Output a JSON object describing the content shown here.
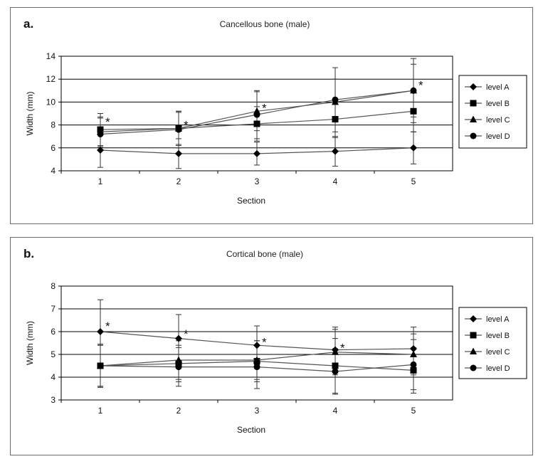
{
  "chart_data": [
    {
      "type": "line",
      "panel_letter": "a.",
      "title": "Cancellous bone (male)",
      "xlabel": "Section",
      "ylabel": "Width (mm)",
      "ylim": [
        4,
        14
      ],
      "yticks": [
        "4",
        "6",
        "8",
        "10",
        "12",
        "14"
      ],
      "categories": [
        "1",
        "2",
        "3",
        "4",
        "5"
      ],
      "grid": "horizontal",
      "legend_position": "right",
      "series": [
        {
          "name": "level A",
          "marker": "diamond",
          "values": [
            5.8,
            5.5,
            5.5,
            5.7,
            6.0
          ],
          "err": [
            1.5,
            1.3,
            1.0,
            1.3,
            1.4
          ]
        },
        {
          "name": "level B",
          "marker": "square",
          "values": [
            7.6,
            7.7,
            8.1,
            8.5,
            9.2
          ],
          "err": [
            1.4,
            1.5,
            1.5,
            1.6,
            1.8
          ]
        },
        {
          "name": "level C",
          "marker": "triangle",
          "values": [
            7.4,
            7.7,
            9.2,
            10.0,
            11.0
          ],
          "err": [
            1.3,
            1.4,
            1.7,
            2.0,
            2.3
          ]
        },
        {
          "name": "level D",
          "marker": "circle",
          "values": [
            7.2,
            7.6,
            8.9,
            10.2,
            11.0
          ],
          "err": [
            1.4,
            1.6,
            2.1,
            2.8,
            2.8
          ]
        }
      ],
      "annotations": [
        {
          "text": "*",
          "category": "1",
          "y": 8.3
        },
        {
          "text": "*",
          "category": "2",
          "y": 8.0
        },
        {
          "text": "*",
          "category": "3",
          "y": 9.5
        },
        {
          "text": "*",
          "category": "5",
          "y": 11.5
        }
      ]
    },
    {
      "type": "line",
      "panel_letter": "b.",
      "title": "Cortical bone (male)",
      "xlabel": "Section",
      "ylabel": "Width (mm)",
      "ylim": [
        3,
        8
      ],
      "yticks": [
        "3",
        "4",
        "5",
        "6",
        "7",
        "8"
      ],
      "categories": [
        "1",
        "2",
        "3",
        "4",
        "5"
      ],
      "grid": "horizontal",
      "legend_position": "right",
      "series": [
        {
          "name": "level A",
          "marker": "diamond",
          "values": [
            6.0,
            5.7,
            5.4,
            5.2,
            5.25
          ],
          "err": [
            1.4,
            1.05,
            0.85,
            1.0,
            0.95
          ]
        },
        {
          "name": "level B",
          "marker": "square",
          "values": [
            4.5,
            4.6,
            4.7,
            4.5,
            4.3
          ],
          "err": [
            0.9,
            0.8,
            0.9,
            1.2,
            1.0
          ]
        },
        {
          "name": "level C",
          "marker": "triangle",
          "values": [
            4.5,
            4.75,
            4.75,
            5.1,
            5.0
          ],
          "err": [
            0.9,
            0.85,
            0.85,
            1.0,
            0.9
          ]
        },
        {
          "name": "level D",
          "marker": "circle",
          "values": [
            4.5,
            4.45,
            4.45,
            4.25,
            4.55
          ],
          "err": [
            0.95,
            0.85,
            0.95,
            1.0,
            1.1
          ]
        }
      ],
      "annotations": [
        {
          "text": "*",
          "category": "1",
          "y": 6.25
        },
        {
          "text": "*",
          "category": "2",
          "y": 5.9
        },
        {
          "text": "*",
          "category": "3",
          "y": 5.55
        },
        {
          "text": "*",
          "category": "4",
          "y": 5.3
        }
      ]
    }
  ]
}
